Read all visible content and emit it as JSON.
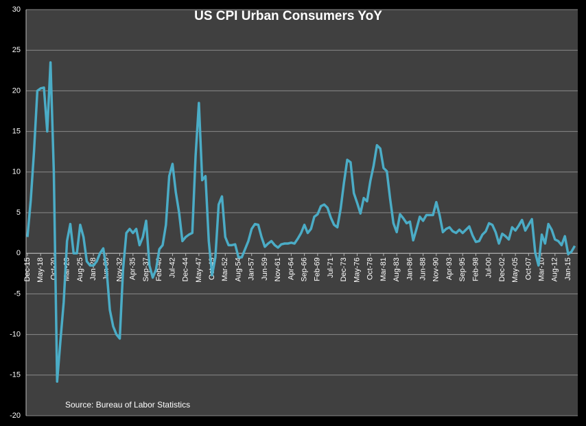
{
  "chart_data": {
    "type": "line",
    "title": "US CPI Urban Consumers YoY",
    "annotation": "Source: Bureau of Labor Statistics",
    "categories": [
      "Dec-15",
      null,
      null,
      null,
      "May-18",
      null,
      null,
      null,
      "Oct-20",
      null,
      null,
      null,
      "Mar-23",
      null,
      null,
      null,
      "Aug-25",
      null,
      null,
      null,
      "Jan-28",
      null,
      null,
      null,
      "Jun-30",
      null,
      null,
      null,
      "Nov-32",
      null,
      null,
      null,
      "Apr-35",
      null,
      null,
      null,
      "Sep-37",
      null,
      null,
      null,
      "Feb-40",
      null,
      null,
      null,
      "Jul-42",
      null,
      null,
      null,
      "Dec-44",
      null,
      null,
      null,
      "May-47",
      null,
      null,
      null,
      "Oct-49",
      null,
      null,
      null,
      "Mar-52",
      null,
      null,
      null,
      "Aug-54",
      null,
      null,
      null,
      "Jan-57",
      null,
      null,
      null,
      "Jun-59",
      null,
      null,
      null,
      "Nov-61",
      null,
      null,
      null,
      "Apr-64",
      null,
      null,
      null,
      "Sep-66",
      null,
      null,
      null,
      "Feb-69",
      null,
      null,
      null,
      "Jul-71",
      null,
      null,
      null,
      "Dec-73",
      null,
      null,
      null,
      "May-76",
      null,
      null,
      null,
      "Oct-78",
      null,
      null,
      null,
      "Mar-81",
      null,
      null,
      null,
      "Aug-83",
      null,
      null,
      null,
      "Jan-86",
      null,
      null,
      null,
      "Jun-88",
      null,
      null,
      null,
      "Nov-90",
      null,
      null,
      null,
      "Apr-93",
      null,
      null,
      null,
      "Sep-95",
      null,
      null,
      null,
      "Feb-98",
      null,
      null,
      null,
      "Jul-00",
      null,
      null,
      null,
      "Dec-02",
      null,
      null,
      null,
      "May-05",
      null,
      null,
      null,
      "Oct-07",
      null,
      null,
      null,
      "Mar-10",
      null,
      null,
      null,
      "Aug-12",
      null,
      null,
      null,
      "Jan-15",
      null,
      null
    ],
    "series": [
      {
        "color": "#4bacc6",
        "values": [
          2.0,
          6.5,
          12.6,
          20.0,
          20.3,
          20.4,
          15.0,
          23.5,
          10.0,
          -15.8,
          -10.8,
          -6.0,
          1.5,
          3.6,
          0.0,
          0.0,
          3.5,
          2.0,
          -1.0,
          -1.5,
          -1.5,
          -1.0,
          0.0,
          0.6,
          -2.0,
          -7.0,
          -9.0,
          -10.0,
          -10.5,
          -2.0,
          2.5,
          3.0,
          2.5,
          3.0,
          1.0,
          2.0,
          4.0,
          -1.5,
          -3.0,
          -2.0,
          0.5,
          1.0,
          3.5,
          9.5,
          11.0,
          7.5,
          5.0,
          1.5,
          2.0,
          2.3,
          2.5,
          12.0,
          18.5,
          9.0,
          9.5,
          1.5,
          -2.7,
          -0.5,
          6.0,
          7.0,
          2.0,
          1.0,
          1.0,
          1.1,
          -0.5,
          -0.5,
          0.5,
          1.5,
          3.0,
          3.6,
          3.5,
          2.0,
          0.8,
          1.2,
          1.5,
          1.0,
          0.7,
          1.1,
          1.2,
          1.2,
          1.3,
          1.2,
          1.8,
          2.5,
          3.5,
          2.5,
          3.0,
          4.5,
          4.8,
          5.8,
          6.0,
          5.6,
          4.4,
          3.5,
          3.2,
          5.5,
          8.7,
          11.5,
          11.2,
          7.4,
          6.2,
          4.9,
          6.8,
          6.4,
          8.9,
          10.8,
          13.3,
          12.9,
          10.5,
          10.1,
          6.7,
          3.7,
          2.6,
          4.8,
          4.3,
          3.7,
          3.9,
          1.6,
          3.0,
          4.5,
          4.0,
          4.7,
          4.7,
          4.7,
          6.3,
          4.7,
          2.6,
          3.0,
          3.2,
          2.7,
          2.5,
          2.9,
          2.5,
          2.9,
          3.3,
          2.2,
          1.4,
          1.5,
          2.3,
          2.7,
          3.7,
          3.5,
          2.6,
          1.2,
          2.4,
          2.1,
          1.7,
          3.2,
          2.8,
          3.4,
          4.1,
          2.8,
          3.5,
          4.2,
          0.1,
          -1.5,
          2.3,
          1.2,
          3.6,
          2.9,
          1.7,
          1.5,
          1.0,
          2.1,
          -0.1,
          0.2,
          0.9
        ]
      }
    ],
    "ylim": [
      -20,
      30
    ],
    "yticks": [
      -20,
      -15,
      -10,
      -5,
      0,
      5,
      10,
      15,
      20,
      25,
      30
    ],
    "grid": true
  }
}
